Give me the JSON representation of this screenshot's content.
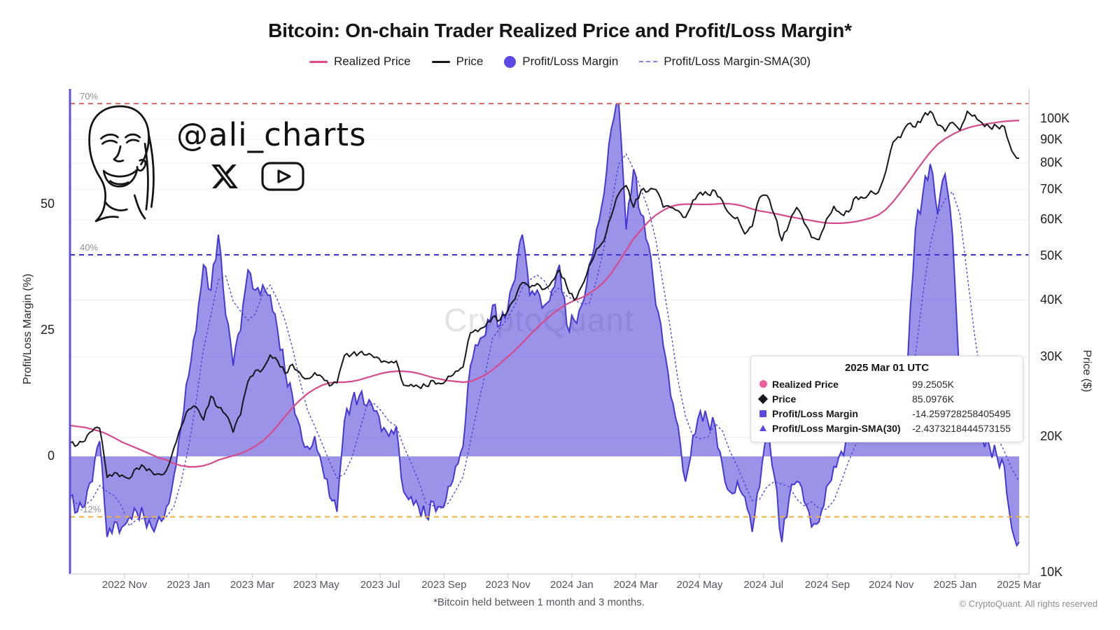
{
  "title": "Bitcoin: On-chain Trader Realized Price and Profit/Loss Margin*",
  "watermark": "CryptoQuant",
  "logo": {
    "handle": "@ali_charts"
  },
  "legend": {
    "items": [
      {
        "label": "Realized Price",
        "swatch": "line",
        "color": "#e0488e"
      },
      {
        "label": "Price",
        "swatch": "line",
        "color": "#16161c"
      },
      {
        "label": "Profit/Loss Margin",
        "swatch": "dot",
        "color": "#5b49e6"
      },
      {
        "label": "Profit/Loss Margin-SMA(30)",
        "swatch": "dashed",
        "color": "#8d80ee"
      }
    ]
  },
  "axes": {
    "left": {
      "title": "Profit/Loss Margin (%)",
      "ticks": [
        {
          "label": "50",
          "value": 50
        },
        {
          "label": "25",
          "value": 25
        },
        {
          "label": "0",
          "value": 0
        }
      ]
    },
    "right": {
      "title": "Price ($)",
      "ticks": [
        {
          "label": "100K",
          "value": 100
        },
        {
          "label": "90K",
          "value": 90
        },
        {
          "label": "80K",
          "value": 80
        },
        {
          "label": "70K",
          "value": 70
        },
        {
          "label": "60K",
          "value": 60
        },
        {
          "label": "50K",
          "value": 50
        },
        {
          "label": "40K",
          "value": 40
        },
        {
          "label": "30K",
          "value": 30
        },
        {
          "label": "20K",
          "value": 20
        },
        {
          "label": "10K",
          "value": 10
        }
      ]
    },
    "x": {
      "labels": [
        "2022 Nov",
        "2023 Jan",
        "2023 Mar",
        "2023 May",
        "2023 Jul",
        "2023 Sep",
        "2023 Nov",
        "2024 Jan",
        "2024 Mar",
        "2024 May",
        "2024 Jul",
        "2024 Sep",
        "2024 Nov",
        "2025 Jan",
        "2025 Mar"
      ]
    },
    "ref_lines": [
      {
        "label": "70%",
        "value": 70,
        "color": "#e06b6b"
      },
      {
        "label": "40%",
        "value": 40,
        "color": "#4034cf"
      },
      {
        "label": "-12%",
        "value": -12,
        "color": "#f2b13e"
      }
    ]
  },
  "tooltip": {
    "title": "2025 Mar 01 UTC",
    "rows": [
      {
        "marker": "circle",
        "color": "#ec5f9d",
        "label": "Realized Price",
        "value": "99.2505K"
      },
      {
        "marker": "diamond",
        "color": "#16161c",
        "label": "Price",
        "value": "85.0976K"
      },
      {
        "marker": "square",
        "color": "#5b49e6",
        "label": "Profit/Loss Margin",
        "value": "-14.259728258405495"
      },
      {
        "marker": "triangle",
        "color": "#5b49e6",
        "label": "Profit/Loss Margin-SMA(30)",
        "value": "-2.4373218444573155"
      }
    ]
  },
  "footnote": "*Bitcoin held between 1 month and 3 months.",
  "copyright": "© CryptoQuant. All rights reserved",
  "colors": {
    "accent_axis": "#5a50dd",
    "margin_fill": "rgba(72,58,212,0.55)",
    "margin_line": "#4538d8",
    "sma_line": "#4b3fd4",
    "price_line": "#16161c",
    "realized_line": "#d6498c",
    "grid": "#ededf2",
    "axis_gray": "#d7d7e0",
    "tick_gray": "#c8c8d2"
  },
  "chart_data": {
    "type": "area+line",
    "x_start": "2022 Oct",
    "x_end": "2025 Mar",
    "points_interval": "weekly",
    "left_axis": {
      "label": "Profit/Loss Margin (%)",
      "range": [
        -23,
        73
      ],
      "scale": "linear"
    },
    "right_axis": {
      "label": "Price ($)",
      "range_k": [
        9.8,
        116
      ],
      "scale": "log"
    },
    "ref_levels_pct": [
      70,
      40,
      -12
    ],
    "series": [
      {
        "name": "Profit/Loss Margin",
        "axis": "left",
        "type": "area",
        "unit": "%",
        "values": [
          -8,
          -11,
          -10,
          -5,
          3,
          -16,
          -13,
          -14,
          -12,
          -11,
          -12,
          -14,
          -12,
          -10,
          -4,
          6,
          16,
          25,
          38,
          33,
          44,
          28,
          18,
          25,
          37,
          33,
          34,
          32,
          25,
          17,
          12,
          6,
          2,
          4,
          -2,
          -8,
          -11,
          7,
          11,
          12,
          10,
          9,
          5,
          4,
          6,
          -7,
          -8,
          -10,
          -12,
          -9,
          -10,
          -6,
          -2,
          2,
          18,
          22,
          24,
          30,
          26,
          29,
          35,
          44,
          32,
          33,
          30,
          33,
          38,
          26,
          27,
          30,
          38,
          45,
          52,
          65,
          70,
          45,
          57,
          48,
          42,
          30,
          22,
          12,
          6,
          -5,
          4,
          9,
          7,
          6,
          -2,
          -7,
          -5,
          -8,
          -15,
          -6,
          5,
          -4,
          -17,
          -8,
          -5,
          -9,
          -14,
          -13,
          -6,
          -2,
          1,
          3,
          8,
          7,
          10,
          5,
          8,
          10,
          14,
          20,
          45,
          52,
          58,
          48,
          56,
          44,
          14,
          8,
          5,
          4,
          2,
          0,
          -2,
          -14.26,
          -17
        ]
      },
      {
        "name": "Profit/Loss Margin-SMA(30)",
        "axis": "left",
        "type": "dashed-line",
        "unit": "%",
        "values": [
          -8,
          -9.5,
          -9.7,
          -8.5,
          -5.8,
          -7,
          -7.8,
          -10,
          -13.8,
          -12.5,
          -12.3,
          -12.3,
          -12.3,
          -12,
          -10,
          -5,
          2,
          10.8,
          21.3,
          28,
          35,
          35.8,
          30.8,
          28.8,
          27,
          28.3,
          32.3,
          34,
          31,
          27,
          21.5,
          15,
          9.3,
          6,
          2.5,
          -1,
          -4.3,
          -3.5,
          -0.3,
          4.8,
          10,
          10.5,
          9,
          7,
          6,
          2,
          -1.3,
          -4.8,
          -9.3,
          -9.8,
          -10.3,
          -9.3,
          -6.8,
          -4,
          3,
          10,
          16.5,
          23.5,
          25.5,
          27.3,
          30,
          33.5,
          35,
          36,
          34.8,
          32,
          33.5,
          31.8,
          31,
          30.3,
          30.3,
          35,
          41.3,
          50,
          58,
          60,
          57,
          53,
          49,
          43,
          34,
          25,
          15,
          8,
          4,
          3.5,
          3.8,
          6.5,
          5,
          1,
          -2,
          -5.5,
          -8.8,
          -8.5,
          -6,
          -5,
          -5.5,
          -6,
          -8.5,
          -9.8,
          -9,
          -10.3,
          -10.5,
          -8.8,
          -5,
          -1,
          2.5,
          4.8,
          7,
          7.5,
          7,
          7.5,
          9,
          12,
          20,
          32,
          42,
          48,
          51,
          52.5,
          48,
          36,
          24,
          14,
          8,
          4,
          1,
          -2.44,
          -5
        ]
      },
      {
        "name": "Price",
        "axis": "right",
        "type": "line",
        "unit": "K$",
        "values": [
          19.4,
          19.2,
          19.6,
          20.6,
          20.9,
          16.3,
          16.7,
          16.5,
          16.2,
          17.1,
          17.2,
          16.8,
          16.6,
          16.9,
          18.9,
          21.1,
          23.0,
          23.3,
          21.8,
          24.6,
          23.2,
          22.4,
          20.5,
          22.4,
          26.5,
          28.0,
          28.2,
          30.3,
          29.4,
          27.6,
          28.9,
          27.7,
          26.9,
          27.7,
          27.1,
          25.9,
          26.3,
          30.2,
          30.4,
          30.6,
          30.3,
          29.9,
          29.2,
          29.1,
          29.4,
          26.0,
          26.1,
          25.8,
          25.9,
          26.6,
          26.2,
          27.2,
          27.9,
          28.5,
          33.9,
          34.1,
          35.0,
          36.7,
          36.2,
          37.7,
          40.2,
          43.7,
          42.6,
          43.5,
          42.3,
          44.0,
          46.6,
          42.8,
          40.0,
          42.9,
          47.5,
          51.8,
          54.0,
          61.2,
          68.5,
          71.4,
          64.0,
          69.6,
          69.4,
          70.0,
          64.0,
          63.9,
          62.9,
          60.8,
          66.3,
          69.0,
          68.3,
          69.5,
          66.0,
          61.8,
          60.8,
          55.9,
          58.1,
          67.2,
          67.9,
          61.5,
          54.0,
          59.0,
          63.9,
          59.1,
          54.9,
          54.3,
          60.2,
          64.3,
          61.8,
          62.5,
          67.5,
          67.0,
          69.5,
          69.0,
          76.5,
          89.0,
          91.0,
          97.5,
          96.0,
          101.0,
          104.0,
          97.0,
          94.0,
          98.3,
          94.5,
          104.0,
          102.0,
          98.0,
          96.0,
          96.3,
          96.2,
          85.1,
          82.0
        ]
      },
      {
        "name": "Realized Price",
        "axis": "right",
        "type": "line",
        "unit": "K$",
        "values": [
          21.2,
          21.1,
          21.0,
          20.8,
          20.6,
          20.3,
          19.9,
          19.5,
          19.2,
          18.9,
          18.6,
          18.3,
          18.0,
          17.8,
          17.5,
          17.3,
          17.2,
          17.2,
          17.3,
          17.5,
          17.8,
          18.0,
          18.2,
          18.4,
          18.7,
          19.1,
          19.6,
          20.3,
          21.2,
          22.2,
          23.2,
          24.1,
          24.9,
          25.5,
          26.0,
          26.3,
          26.4,
          26.4,
          26.5,
          26.7,
          27.0,
          27.3,
          27.6,
          27.8,
          27.9,
          27.9,
          27.8,
          27.6,
          27.3,
          27.0,
          26.8,
          26.6,
          26.5,
          26.4,
          26.5,
          26.9,
          27.4,
          28.1,
          29.0,
          30.0,
          31.0,
          32.2,
          33.5,
          34.8,
          36.0,
          37.2,
          38.3,
          39.2,
          39.9,
          40.5,
          41.3,
          42.4,
          43.8,
          45.8,
          48.5,
          51.5,
          54.5,
          57.0,
          59.5,
          61.5,
          63.0,
          64.2,
          64.8,
          65.0,
          65.0,
          64.9,
          64.9,
          65.0,
          65.2,
          65.1,
          64.8,
          64.2,
          63.4,
          62.8,
          62.4,
          62.0,
          61.5,
          61.0,
          60.6,
          60.2,
          59.8,
          59.4,
          59.1,
          59.0,
          59.0,
          59.2,
          59.5,
          60.0,
          60.6,
          61.5,
          63.2,
          65.8,
          69.0,
          72.5,
          76.5,
          80.5,
          84.5,
          88.0,
          90.5,
          92.5,
          94.2,
          95.5,
          96.5,
          97.2,
          97.8,
          98.3,
          98.8,
          99.1,
          99.25
        ]
      }
    ]
  }
}
